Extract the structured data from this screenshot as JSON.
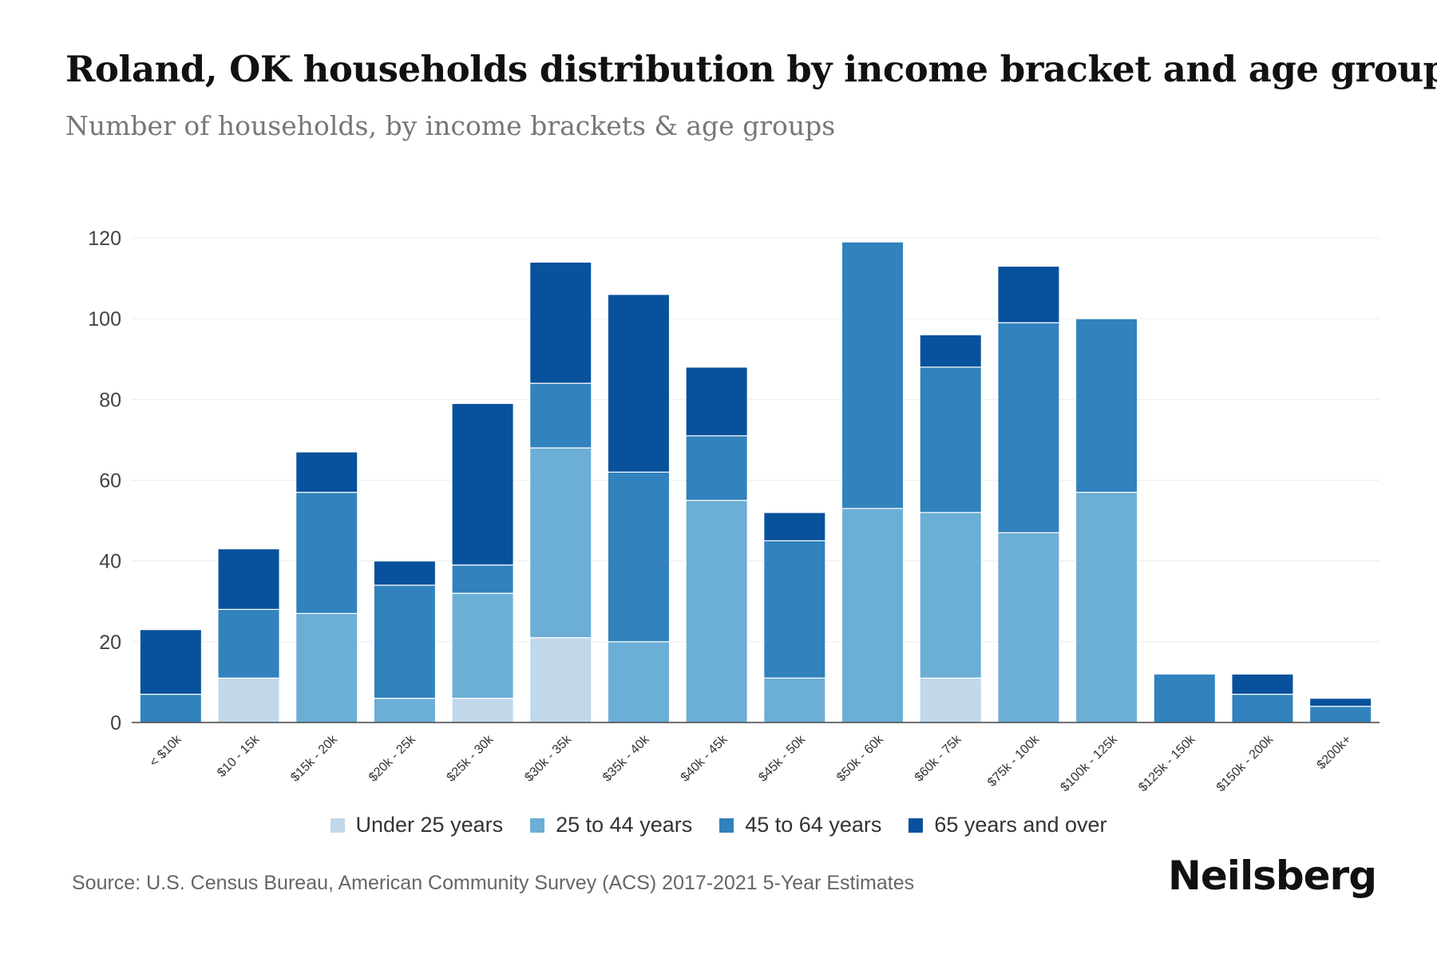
{
  "header": {
    "title": "Roland, OK households distribution by income bracket and age group",
    "subtitle": "Number of households, by income brackets & age groups"
  },
  "footer": {
    "source": "Source: U.S. Census Bureau, American Community Survey (ACS) 2017-2021 5-Year Estimates",
    "brand": "Neilsberg"
  },
  "chart_data": {
    "type": "bar",
    "stacked": true,
    "title": "Roland, OK households distribution by income bracket and age group",
    "subtitle": "Number of households, by income brackets & age groups",
    "xlabel": "",
    "ylabel": "",
    "ylim": [
      0,
      120
    ],
    "yticks": [
      0,
      20,
      40,
      60,
      80,
      100,
      120
    ],
    "grid": true,
    "legend_position": "bottom",
    "categories": [
      "< $10k",
      "$10 - 15k",
      "$15k - 20k",
      "$20k - 25k",
      "$25k - 30k",
      "$30k - 35k",
      "$35k - 40k",
      "$40k - 45k",
      "$45k - 50k",
      "$50k - 60k",
      "$60k - 75k",
      "$75k - 100k",
      "$100k - 125k",
      "$125k - 150k",
      "$150k - 200k",
      "$200k+"
    ],
    "series": [
      {
        "name": "Under 25 years",
        "color": "#c0d8ea",
        "values": [
          0,
          11,
          0,
          0,
          6,
          21,
          0,
          0,
          0,
          0,
          11,
          0,
          0,
          0,
          0,
          0
        ]
      },
      {
        "name": "25 to 44 years",
        "color": "#6baed6",
        "values": [
          0,
          0,
          27,
          6,
          26,
          47,
          20,
          55,
          11,
          53,
          41,
          47,
          57,
          0,
          0,
          0
        ]
      },
      {
        "name": "45 to 64 years",
        "color": "#3182bd",
        "values": [
          7,
          17,
          30,
          28,
          7,
          16,
          42,
          16,
          34,
          66,
          36,
          52,
          43,
          12,
          7,
          4
        ]
      },
      {
        "name": "65 years and over",
        "color": "#08519c",
        "values": [
          16,
          15,
          10,
          6,
          40,
          30,
          44,
          17,
          7,
          0,
          8,
          14,
          0,
          0,
          5,
          2
        ]
      }
    ]
  }
}
